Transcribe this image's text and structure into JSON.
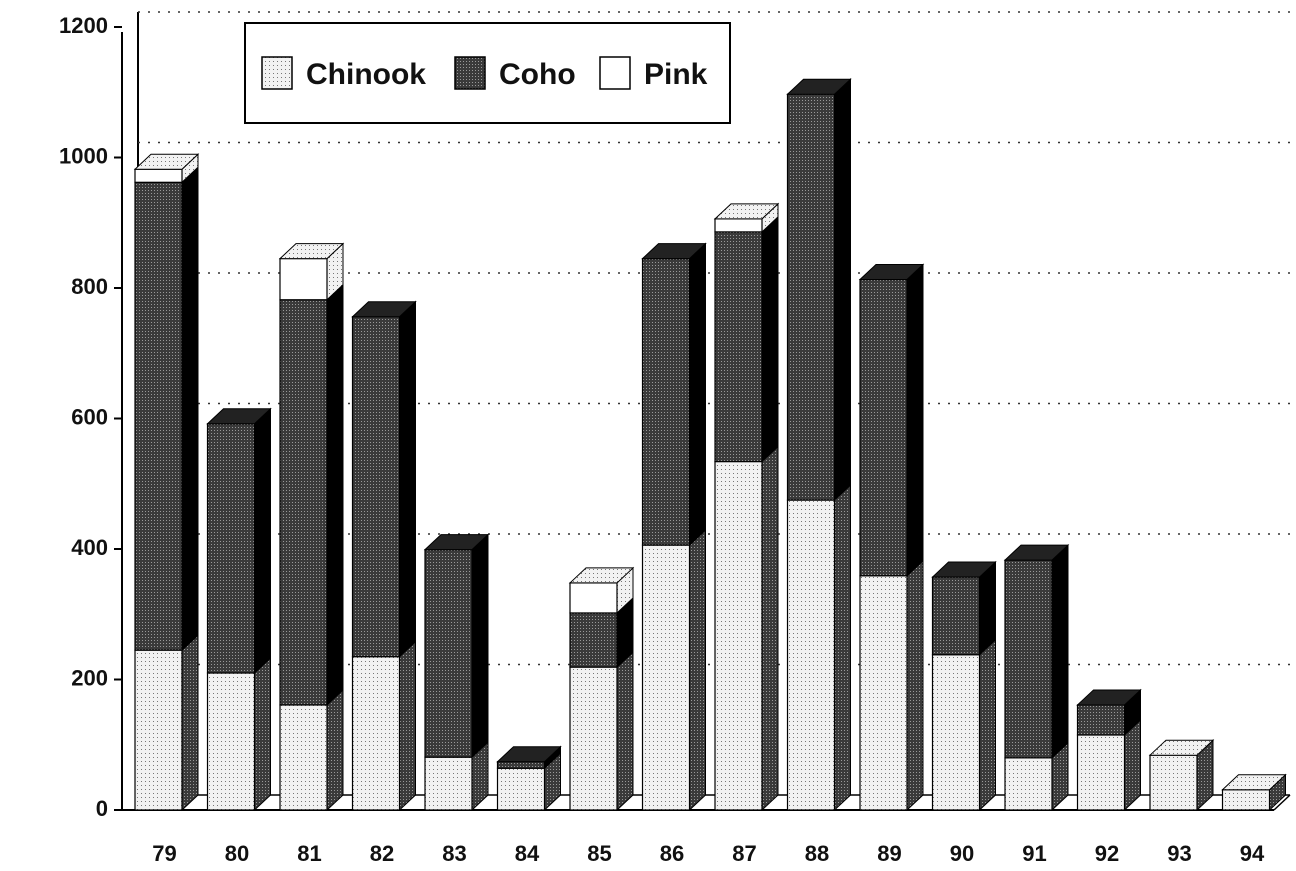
{
  "chart_data": {
    "type": "bar",
    "stacked": true,
    "categories": [
      "79",
      "80",
      "81",
      "82",
      "83",
      "84",
      "85",
      "86",
      "87",
      "88",
      "89",
      "90",
      "91",
      "92",
      "93",
      "94"
    ],
    "series": [
      {
        "name": "Chinook",
        "color": "#e6e6e6",
        "values": [
          245,
          210,
          161,
          235,
          81,
          64,
          219,
          406,
          534,
          475,
          359,
          238,
          80,
          115,
          84,
          31
        ]
      },
      {
        "name": "Coho",
        "color": "#555555",
        "values": [
          717,
          382,
          621,
          521,
          318,
          10,
          83,
          439,
          352,
          622,
          454,
          119,
          303,
          46,
          0,
          0
        ]
      },
      {
        "name": "Pink",
        "color": "#ffffff",
        "values": [
          20,
          0,
          63,
          0,
          0,
          0,
          46,
          0,
          20,
          0,
          0,
          0,
          0,
          0,
          0,
          0
        ]
      }
    ],
    "ylim": [
      0,
      1200
    ],
    "yticks": [
      0,
      200,
      400,
      600,
      800,
      1000,
      1200
    ],
    "grid": true,
    "legend": "top-left"
  }
}
